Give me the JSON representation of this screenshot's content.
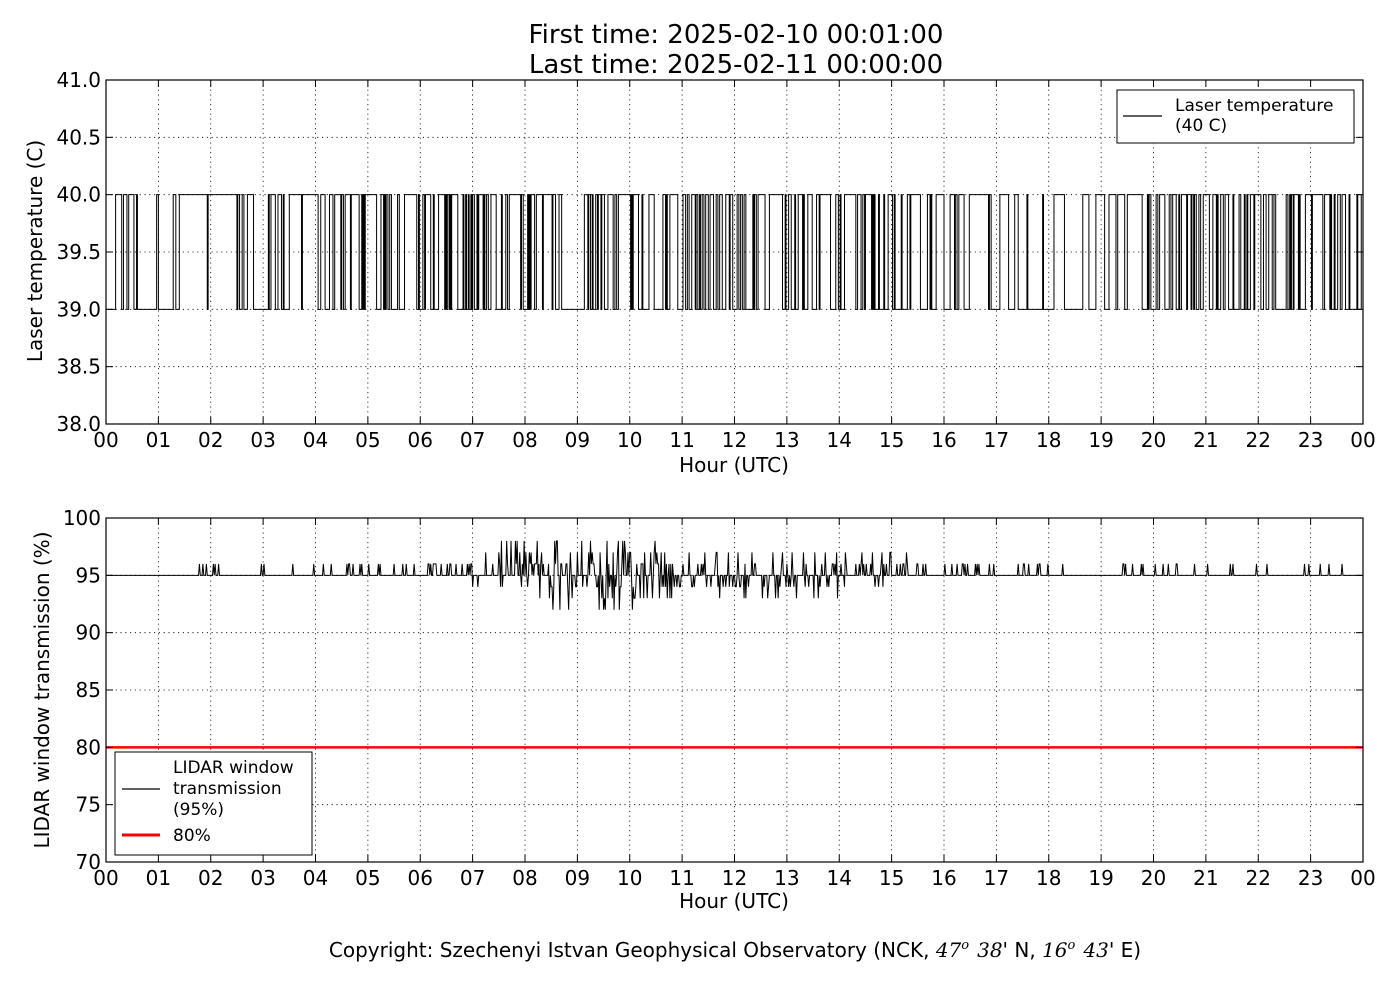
{
  "figure": {
    "title_line1": "First time: 2025-02-10 00:01:00",
    "title_line2": "Last time: 2025-02-11 00:00:00",
    "copyright_prefix": "Copyright: Szechenyi Istvan Geophysical Observatory (NCK, ",
    "copyright_lat_deg": "47",
    "copyright_lat_min": "38",
    "copyright_lat_suffix": "' N, ",
    "copyright_lon_deg": "16",
    "copyright_lon_min": "43",
    "copyright_lon_suffix": "' E)",
    "degree_symbol": "o"
  },
  "chart_data": [
    {
      "type": "line",
      "title": "",
      "xlabel": "Hour (UTC)",
      "ylabel": "Laser temperature (C)",
      "xlim": [
        0,
        24
      ],
      "ylim": [
        38.0,
        41.0
      ],
      "xticks": [
        0,
        1,
        2,
        3,
        4,
        5,
        6,
        7,
        8,
        9,
        10,
        11,
        12,
        13,
        14,
        15,
        16,
        17,
        18,
        19,
        20,
        21,
        22,
        23,
        24
      ],
      "xtick_labels": [
        "00",
        "01",
        "02",
        "03",
        "04",
        "05",
        "06",
        "07",
        "08",
        "09",
        "10",
        "11",
        "12",
        "13",
        "14",
        "15",
        "16",
        "17",
        "18",
        "19",
        "20",
        "21",
        "22",
        "23",
        "00"
      ],
      "yticks": [
        38.0,
        38.5,
        39.0,
        39.5,
        40.0,
        40.5,
        41.0
      ],
      "ytick_labels": [
        "38.0",
        "38.5",
        "39.0",
        "39.5",
        "40.0",
        "40.5",
        "41.0"
      ],
      "grid": true,
      "legend_position": "upper right",
      "series": [
        {
          "name": "Laser temperature\n(40 C)",
          "color": "#000000",
          "levels": [
            39.0,
            40.0
          ],
          "x_step_hours": 0.0166667,
          "segments": [
            {
              "x": [
                0.0,
                0.6
              ],
              "activity": 0.55,
              "high_fraction": 0.55
            },
            {
              "x": [
                0.6,
                0.8
              ],
              "activity": 0.0,
              "level": 39.0
            },
            {
              "x": [
                0.8,
                1.4
              ],
              "activity": 0.35,
              "high_fraction": 0.5
            },
            {
              "x": [
                1.4,
                1.6
              ],
              "activity": 0.1,
              "high_fraction": 0.5
            },
            {
              "x": [
                1.6,
                1.9
              ],
              "activity": 0.5,
              "high_fraction": 0.7
            },
            {
              "x": [
                1.9,
                2.5
              ],
              "activity": 0.05,
              "level": 40.0
            },
            {
              "x": [
                2.5,
                6.3
              ],
              "activity": 0.55,
              "high_fraction": 0.6
            },
            {
              "x": [
                6.3,
                8.0
              ],
              "activity": 0.85,
              "high_fraction": 0.55
            },
            {
              "x": [
                8.0,
                8.7
              ],
              "activity": 0.45,
              "high_fraction": 0.6
            },
            {
              "x": [
                8.7,
                9.1
              ],
              "activity": 0.0,
              "level": 39.0
            },
            {
              "x": [
                9.1,
                9.4
              ],
              "activity": 0.8,
              "high_fraction": 0.5
            },
            {
              "x": [
                9.4,
                11.0
              ],
              "activity": 0.45,
              "high_fraction": 0.6
            },
            {
              "x": [
                11.0,
                16.0
              ],
              "activity": 0.65,
              "high_fraction": 0.55
            },
            {
              "x": [
                16.0,
                16.5
              ],
              "activity": 0.4,
              "high_fraction": 0.6
            },
            {
              "x": [
                16.5,
                16.9
              ],
              "activity": 0.05,
              "level": 40.0
            },
            {
              "x": [
                16.9,
                18.9
              ],
              "activity": 0.2,
              "high_fraction": 0.3
            },
            {
              "x": [
                18.9,
                24.0
              ],
              "activity": 0.6,
              "high_fraction": 0.6
            }
          ]
        }
      ]
    },
    {
      "type": "line",
      "title": "",
      "xlabel": "Hour (UTC)",
      "ylabel": "LIDAR window transmission (%)",
      "xlim": [
        0,
        24
      ],
      "ylim": [
        70,
        100
      ],
      "xticks": [
        0,
        1,
        2,
        3,
        4,
        5,
        6,
        7,
        8,
        9,
        10,
        11,
        12,
        13,
        14,
        15,
        16,
        17,
        18,
        19,
        20,
        21,
        22,
        23,
        24
      ],
      "xtick_labels": [
        "00",
        "01",
        "02",
        "03",
        "04",
        "05",
        "06",
        "07",
        "08",
        "09",
        "10",
        "11",
        "12",
        "13",
        "14",
        "15",
        "16",
        "17",
        "18",
        "19",
        "20",
        "21",
        "22",
        "23",
        "00"
      ],
      "yticks": [
        70,
        75,
        80,
        85,
        90,
        95,
        100
      ],
      "ytick_labels": [
        "70",
        "75",
        "80",
        "85",
        "90",
        "95",
        "100"
      ],
      "grid": true,
      "legend_position": "lower left",
      "series": [
        {
          "name": "LIDAR window\ntransmission\n(95%)",
          "color": "#000000",
          "baseline": 95,
          "x_step_hours": 0.0166667,
          "segments": [
            {
              "x": [
                0.0,
                1.6
              ],
              "spike_prob": 0.01,
              "range": [
                95,
                96
              ]
            },
            {
              "x": [
                1.6,
                4.3
              ],
              "spike_prob": 0.12,
              "range": [
                95,
                96
              ]
            },
            {
              "x": [
                4.3,
                6.0
              ],
              "spike_prob": 0.2,
              "range": [
                95,
                96
              ]
            },
            {
              "x": [
                6.0,
                7.0
              ],
              "spike_prob": 0.45,
              "range": [
                95,
                96
              ]
            },
            {
              "x": [
                7.0,
                8.0
              ],
              "spike_prob": 0.55,
              "range": [
                94,
                98
              ]
            },
            {
              "x": [
                8.0,
                10.5
              ],
              "spike_prob": 0.7,
              "range": [
                92,
                98
              ]
            },
            {
              "x": [
                10.5,
                14.0
              ],
              "spike_prob": 0.5,
              "range": [
                93,
                97
              ]
            },
            {
              "x": [
                14.0,
                15.3
              ],
              "spike_prob": 0.55,
              "range": [
                94,
                97
              ]
            },
            {
              "x": [
                15.3,
                18.0
              ],
              "spike_prob": 0.25,
              "range": [
                95,
                96
              ]
            },
            {
              "x": [
                18.0,
                19.0
              ],
              "spike_prob": 0.02,
              "range": [
                95,
                96
              ]
            },
            {
              "x": [
                19.0,
                22.0
              ],
              "spike_prob": 0.15,
              "range": [
                95,
                96
              ]
            },
            {
              "x": [
                22.0,
                24.0
              ],
              "spike_prob": 0.08,
              "range": [
                95,
                96
              ]
            }
          ]
        },
        {
          "name": "80%",
          "color": "#ff0000",
          "x": [
            0,
            24
          ],
          "values": [
            80,
            80
          ]
        }
      ]
    }
  ]
}
